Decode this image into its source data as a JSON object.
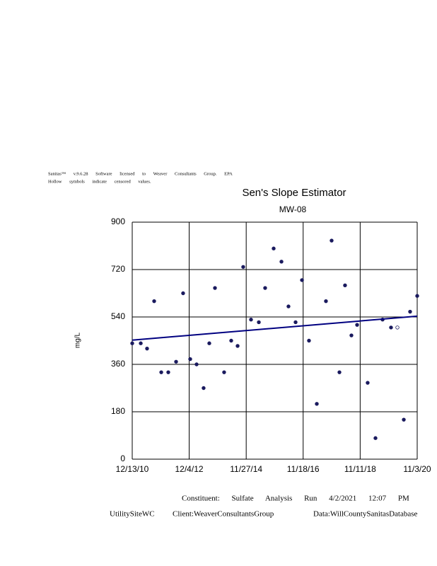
{
  "notes": [
    "Sanitas™ v.9.6.28 Software licensed to Weaver Consultants Group. EPA",
    "Hollow symbols indicate censored values."
  ],
  "chart_data": {
    "type": "scatter",
    "title": "Sen's Slope Estimator",
    "subtitle": "MW-08",
    "y_label": "mg/L",
    "x": [
      "12/13/10",
      "3/31/11",
      "6/19/11",
      "9/17/11",
      "12/16/11",
      "3/14/12",
      "6/21/12",
      "9/18/12",
      "12/17/12",
      "3/8/13",
      "6/5/13",
      "8/16/13",
      "10/27/13",
      "2/20/14",
      "5/21/14",
      "8/10/14",
      "10/20/14",
      "1/27/15",
      "5/6/15",
      "7/25/15",
      "11/10/15",
      "2/17/16",
      "5/16/16",
      "8/14/16",
      "11/3/16",
      "1/31/17",
      "5/10/17",
      "9/3/17",
      "11/14/17",
      "2/21/18",
      "5/3/18",
      "7/23/18",
      "10/3/18",
      "2/14/19",
      "5/24/19",
      "8/22/19",
      "12/7/19",
      "2/26/20",
      "5/17/20",
      "8/5/20",
      "11/3/20"
    ],
    "values": [
      440,
      440,
      420,
      600,
      330,
      330,
      370,
      630,
      380,
      360,
      270,
      440,
      650,
      330,
      450,
      430,
      730,
      530,
      520,
      650,
      800,
      750,
      580,
      520,
      680,
      450,
      210,
      600,
      830,
      330,
      660,
      470,
      510,
      290,
      80,
      530,
      500,
      500,
      150,
      560,
      620
    ],
    "censored": [
      false,
      false,
      false,
      false,
      false,
      false,
      false,
      false,
      false,
      false,
      false,
      false,
      false,
      false,
      false,
      false,
      false,
      false,
      false,
      false,
      false,
      false,
      false,
      false,
      false,
      false,
      false,
      false,
      false,
      false,
      false,
      false,
      false,
      false,
      false,
      false,
      false,
      true,
      false,
      false,
      false
    ],
    "color": "#1a1a5e",
    "trend": {
      "x": [
        "12/13/10",
        "11/3/20"
      ],
      "values": [
        452,
        543
      ],
      "color": "#000080"
    },
    "xlim": [
      "12/13/10",
      "11/3/20"
    ],
    "xticks": [
      "12/13/10",
      "12/4/12",
      "11/27/14",
      "11/18/16",
      "11/11/18",
      "11/3/20"
    ],
    "ylim": [
      0,
      900
    ],
    "yticks": [
      0,
      180,
      360,
      540,
      720,
      900
    ],
    "grid": true
  },
  "footer": {
    "line1": "Constituent: Sulfate Analysis Run 4/2/2021 12:07 PM",
    "site": "UtilitySiteWC",
    "client": "Client:WeaverConsultantsGroup",
    "database": "Data:WillCountySanitasDatabase"
  }
}
